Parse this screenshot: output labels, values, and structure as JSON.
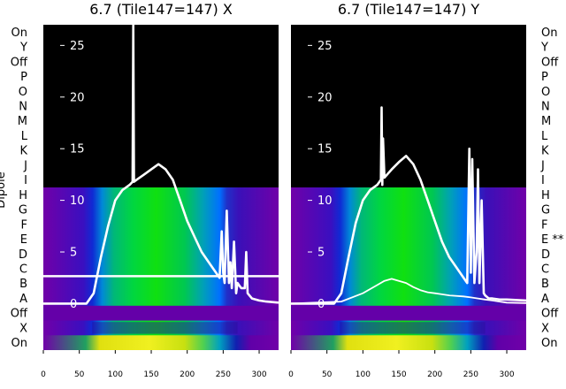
{
  "chart_data": {
    "type": "heatmap",
    "ylabel": "Dipole",
    "row_labels": [
      "On",
      "Y",
      "Off",
      "P",
      "O",
      "N",
      "M",
      "L",
      "K",
      "J",
      "I",
      "H",
      "G",
      "F",
      "E",
      "D",
      "C",
      "B",
      "A",
      "Off",
      "X",
      "On"
    ],
    "panels": [
      {
        "title": "6.7 (Tile147=147) X",
        "annotation": "",
        "active_rows": [
          "H",
          "G",
          "F",
          "E",
          "D",
          "C",
          "B",
          "A",
          "Off",
          "X",
          "On"
        ],
        "flagged_line_row": "B",
        "x_ticks": [
          0,
          50,
          100,
          150,
          200,
          250,
          300
        ],
        "xlim": [
          0,
          327
        ],
        "y_ticks": [
          0,
          5,
          10,
          15,
          20,
          25
        ],
        "ylim": [
          -4.5,
          27
        ],
        "series": [
          {
            "x": [
              0,
              60,
              70,
              80,
              90,
              100,
              110,
              120,
              124,
              125,
              126,
              130,
              140,
              150,
              160,
              170,
              180,
              190,
              200,
              210,
              220,
              230,
              240,
              245,
              248,
              250,
              252,
              255,
              258,
              260,
              262,
              265,
              268,
              270,
              275,
              280,
              282,
              284,
              290,
              300,
              310,
              327
            ],
            "y": [
              0,
              0,
              1,
              4.5,
              7.5,
              10,
              11,
              11.5,
              11.8,
              27,
              11.8,
              12,
              12.5,
              13,
              13.5,
              13,
              12,
              10,
              8,
              6.5,
              5,
              4,
              3,
              2.5,
              7,
              3,
              2,
              9,
              2,
              4,
              1.5,
              6,
              1,
              2,
              1.5,
              1.5,
              5,
              1,
              0.5,
              0.3,
              0.2,
              0.1
            ]
          }
        ]
      },
      {
        "title": "6.7 (Tile147=147) Y",
        "annotation": "**",
        "active_rows": [
          "H",
          "G",
          "F",
          "E",
          "D",
          "C",
          "B",
          "A",
          "Off",
          "X",
          "On"
        ],
        "flagged_line_row": "",
        "x_ticks": [
          0,
          50,
          100,
          150,
          200,
          250,
          300
        ],
        "xlim": [
          0,
          327
        ],
        "y_ticks": [
          0,
          5,
          10,
          15,
          20,
          25
        ],
        "ylim": [
          -4.5,
          27
        ],
        "series": [
          {
            "x": [
              0,
              60,
              70,
              80,
              90,
              100,
              110,
              120,
              125,
              126,
              127,
              128,
              130,
              140,
              150,
              160,
              170,
              180,
              190,
              200,
              210,
              220,
              230,
              240,
              245,
              248,
              250,
              252,
              255,
              258,
              260,
              262,
              265,
              268,
              270,
              275,
              280,
              290,
              300,
              327
            ],
            "y": [
              0,
              0,
              1,
              4.5,
              7.8,
              10,
              11,
              11.5,
              12,
              19,
              11.5,
              16,
              12.2,
              13,
              13.7,
              14.3,
              13.5,
              12,
              10,
              8,
              6,
              4.5,
              3.5,
              2.5,
              2,
              15,
              3,
              14,
              2,
              5,
              13,
              2,
              10,
              1,
              0.8,
              0.5,
              0.5,
              0.4,
              0.4,
              0.3
            ]
          },
          {
            "x": [
              0,
              70,
              100,
              120,
              130,
              140,
              150,
              160,
              170,
              180,
              190,
              200,
              210,
              220,
              240,
              250,
              260,
              270,
              280,
              290,
              300,
              327
            ],
            "y": [
              0,
              0.2,
              1,
              1.8,
              2.2,
              2.4,
              2.2,
              2,
              1.6,
              1.3,
              1.1,
              1,
              0.9,
              0.8,
              0.7,
              0.6,
              0.5,
              0.4,
              0.3,
              0.2,
              0.1,
              0.05
            ]
          }
        ]
      }
    ]
  }
}
